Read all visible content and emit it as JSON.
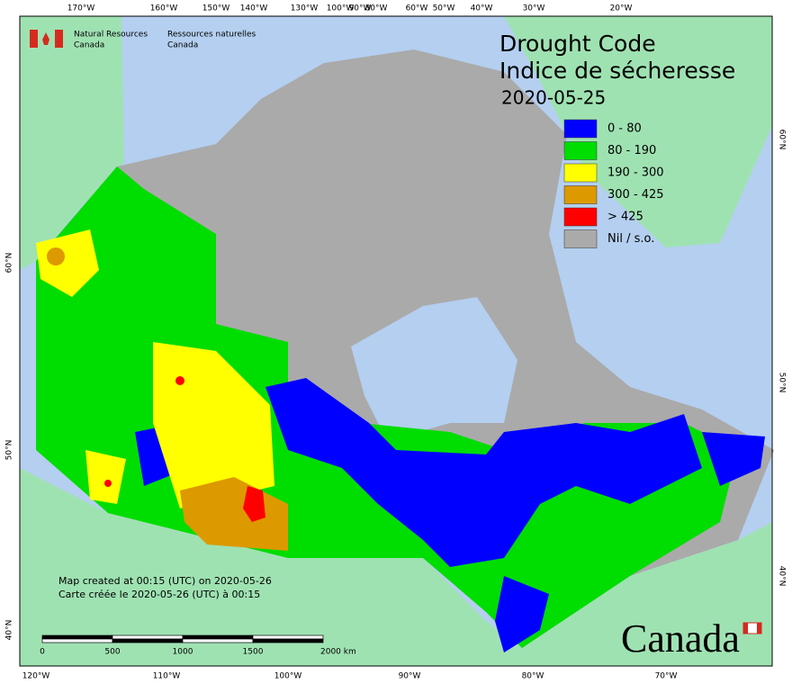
{
  "header": {
    "org_en": [
      "Natural Resources",
      "Canada"
    ],
    "org_fr": [
      "Ressources naturelles",
      "Canada"
    ]
  },
  "title": {
    "en": "Drought Code",
    "fr": "Indice de sécheresse",
    "date": "2020-05-25"
  },
  "legend": [
    {
      "label": "0 - 80",
      "color": "#0000ff"
    },
    {
      "label": "80 - 190",
      "color": "#00dd00"
    },
    {
      "label": "190 - 300",
      "color": "#ffff00"
    },
    {
      "label": "300 - 425",
      "color": "#dd9900"
    },
    {
      "label": "> 425",
      "color": "#ff0000"
    },
    {
      "label": "Nil / s.o.",
      "color": "#aaaaaa"
    }
  ],
  "top_longitudes": [
    "170°W",
    "160°W",
    "150°W",
    "140°W",
    "130°W",
    "100°W",
    "90°W",
    "80°W",
    "60°W",
    "50°W",
    "40°W",
    "30°W",
    "20°W"
  ],
  "bottom_longitudes": [
    "120°W",
    "110°W",
    "100°W",
    "90°W",
    "80°W",
    "70°W"
  ],
  "left_latitudes": [
    "60°N",
    "50°N",
    "40°N"
  ],
  "right_latitudes": [
    "60°N",
    "50°N",
    "40°N"
  ],
  "credits": [
    "Map created at 00:15 (UTC) on 2020-05-26",
    "Carte créée le 2020-05-26 (UTC) à 00:15"
  ],
  "scale_bar": [
    "0",
    "500",
    "1000",
    "1500",
    "2000 km"
  ],
  "wordmark": "Canada"
}
